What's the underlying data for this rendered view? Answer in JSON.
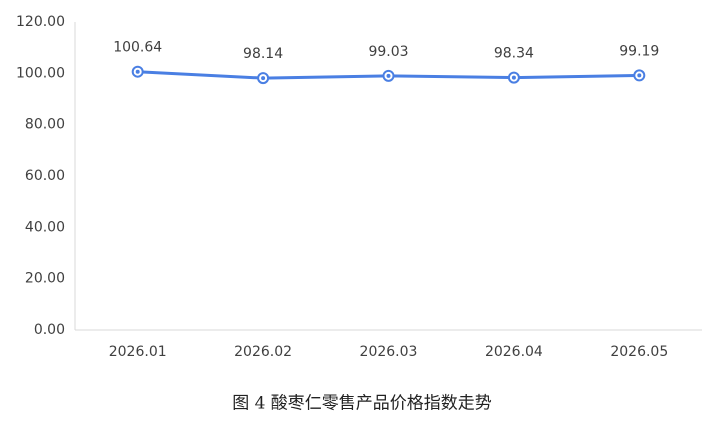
{
  "chart_data": {
    "type": "line",
    "title": "图 4 酸枣仁零售产品价格指数走势",
    "categories": [
      "2026.01",
      "2026.02",
      "2026.03",
      "2026.04",
      "2026.05"
    ],
    "series": [
      {
        "name": "价格指数",
        "color": "#4a7fe3",
        "values": [
          100.64,
          98.14,
          99.03,
          98.34,
          99.19
        ]
      }
    ],
    "ylim": [
      0,
      120
    ],
    "yticks": [
      {
        "value": 0,
        "label": "0.00"
      },
      {
        "value": 20,
        "label": "20.00"
      },
      {
        "value": 40,
        "label": "40.00"
      },
      {
        "value": 60,
        "label": "60.00"
      },
      {
        "value": 80,
        "label": "80.00"
      },
      {
        "value": 100,
        "label": "100.00"
      },
      {
        "value": 120,
        "label": "120.00"
      }
    ],
    "grid": false
  }
}
